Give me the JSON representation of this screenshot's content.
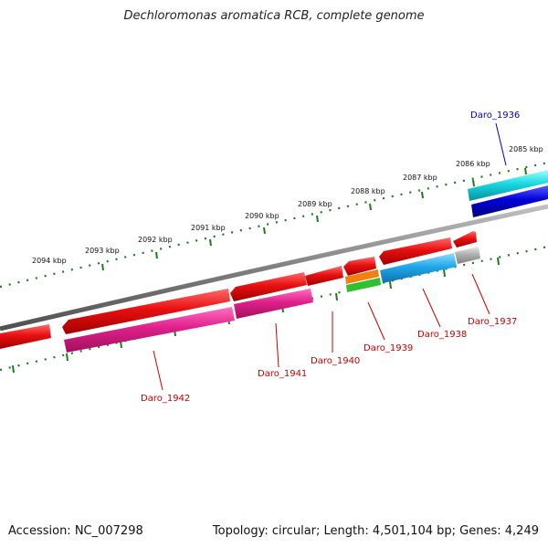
{
  "title": "Dechloromonas aromatica RCB, complete genome",
  "footer": {
    "accession": "Accession: NC_007298",
    "summary": "Topology: circular; Length: 4,501,104 bp; Genes: 4,249"
  },
  "scale_ticks": [
    "2085 kbp",
    "2086 kbp",
    "2087 kbp",
    "2088 kbp",
    "2089 kbp",
    "2090 kbp",
    "2091 kbp",
    "2092 kbp",
    "2093 kbp",
    "2094 kbp"
  ],
  "gene_labels": {
    "daro_1936": "Daro_1936",
    "daro_1937": "Daro_1937",
    "daro_1938": "Daro_1938",
    "daro_1939": "Daro_1939",
    "daro_1940": "Daro_1940",
    "daro_1941": "Daro_1941",
    "daro_1942": "Daro_1942"
  },
  "colors": {
    "backbone": "#8a8a8a",
    "tick": "#1e7a1e",
    "gene_red": "#e01010",
    "gene_magenta": "#e0208c",
    "gene_cyan": "#18d8e0",
    "gene_blue": "#0000d8",
    "gene_sky": "#20a8e8",
    "gene_orange": "#f08010",
    "gene_green": "#30c030",
    "gene_gray": "#b0b0b0",
    "label_blue": "#0000cc",
    "label_red": "#cc0000"
  }
}
